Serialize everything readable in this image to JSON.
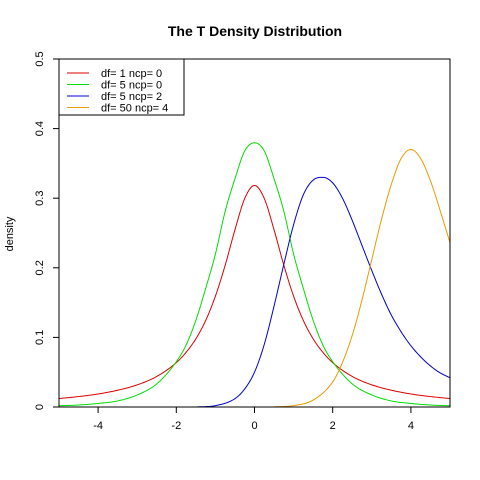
{
  "chart_data": {
    "type": "line",
    "title": "The T Density Distribution",
    "xlabel": "",
    "ylabel": "density",
    "xlim": [
      -5,
      5
    ],
    "ylim": [
      0,
      0.5
    ],
    "xticks": [
      -4,
      -2,
      0,
      2,
      4
    ],
    "yticks": [
      0,
      0.1,
      0.2,
      0.3,
      0.4,
      0.5
    ],
    "grid": false,
    "legend_position": "top-left",
    "series": [
      {
        "name": "df= 1  ncp= 0",
        "color": "#dd0000",
        "x": [
          -5,
          -4.5,
          -4,
          -3.5,
          -3,
          -2.5,
          -2,
          -1.75,
          -1.5,
          -1.25,
          -1,
          -0.75,
          -0.5,
          -0.25,
          0,
          0.25,
          0.5,
          0.75,
          1,
          1.25,
          1.5,
          1.75,
          2,
          2.5,
          3,
          3.5,
          4,
          4.5,
          5
        ],
        "y": [
          0.0122,
          0.015,
          0.0187,
          0.0241,
          0.0318,
          0.0439,
          0.0637,
          0.0785,
          0.0979,
          0.1242,
          0.1592,
          0.2037,
          0.2546,
          0.2996,
          0.3183,
          0.2996,
          0.2546,
          0.2037,
          0.1592,
          0.1242,
          0.0979,
          0.0785,
          0.0637,
          0.0439,
          0.0318,
          0.0241,
          0.0187,
          0.015,
          0.0122
        ]
      },
      {
        "name": "df= 5  ncp= 0",
        "color": "#00dd00",
        "x": [
          -5,
          -4.5,
          -4,
          -3.5,
          -3,
          -2.5,
          -2,
          -1.75,
          -1.5,
          -1.25,
          -1,
          -0.75,
          -0.5,
          -0.25,
          0,
          0.25,
          0.5,
          0.75,
          1,
          1.25,
          1.5,
          1.75,
          2,
          2.5,
          3,
          3.5,
          4,
          4.5,
          5
        ],
        "y": [
          0.0018,
          0.0028,
          0.0051,
          0.0087,
          0.0173,
          0.0332,
          0.0651,
          0.0889,
          0.1245,
          0.1701,
          0.2197,
          0.2812,
          0.3279,
          0.3679,
          0.3796,
          0.3679,
          0.3279,
          0.2812,
          0.2197,
          0.1701,
          0.1245,
          0.0889,
          0.0651,
          0.0332,
          0.0173,
          0.0087,
          0.0051,
          0.0028,
          0.0018
        ]
      },
      {
        "name": "df= 5  ncp= 2",
        "color": "#0000cc",
        "x": [
          -1.5,
          -1,
          -0.5,
          -0.25,
          0,
          0.25,
          0.5,
          0.75,
          1,
          1.25,
          1.5,
          1.75,
          2,
          2.25,
          2.5,
          2.75,
          3,
          3.25,
          3.5,
          3.75,
          4,
          4.25,
          4.5,
          4.75,
          5
        ],
        "y": [
          0,
          0.002,
          0.012,
          0.026,
          0.05,
          0.09,
          0.145,
          0.205,
          0.262,
          0.305,
          0.326,
          0.33,
          0.322,
          0.3,
          0.268,
          0.232,
          0.196,
          0.162,
          0.132,
          0.108,
          0.088,
          0.072,
          0.059,
          0.049,
          0.042
        ]
      },
      {
        "name": "df= 50  ncp= 4",
        "color": "#ee9900",
        "x": [
          0.5,
          1,
          1.5,
          2,
          2.25,
          2.5,
          2.75,
          3,
          3.25,
          3.5,
          3.75,
          4,
          4.25,
          4.5,
          4.75,
          5
        ],
        "y": [
          0.0002,
          0.002,
          0.01,
          0.036,
          0.064,
          0.103,
          0.154,
          0.212,
          0.27,
          0.32,
          0.357,
          0.37,
          0.357,
          0.325,
          0.282,
          0.236
        ]
      }
    ]
  }
}
